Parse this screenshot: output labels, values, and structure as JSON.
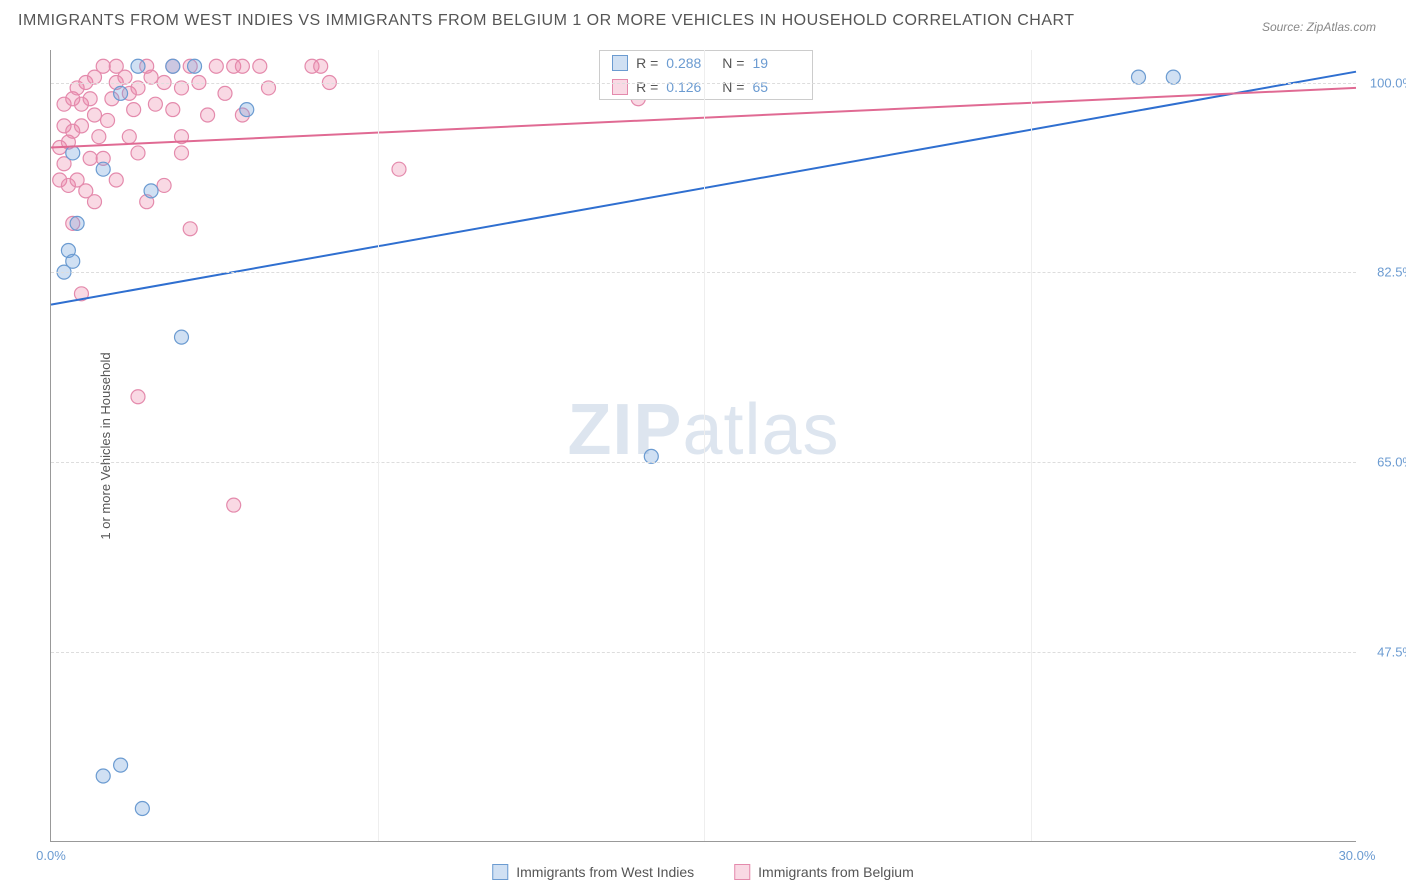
{
  "title": "IMMIGRANTS FROM WEST INDIES VS IMMIGRANTS FROM BELGIUM 1 OR MORE VEHICLES IN HOUSEHOLD CORRELATION CHART",
  "source": "Source: ZipAtlas.com",
  "y_axis_label": "1 or more Vehicles in Household",
  "watermark_bold": "ZIP",
  "watermark_rest": "atlas",
  "chart": {
    "type": "scatter",
    "xlim": [
      0,
      30
    ],
    "ylim": [
      30,
      103
    ],
    "xticks": [
      {
        "v": 0,
        "label": "0.0%"
      },
      {
        "v": 30,
        "label": "30.0%"
      }
    ],
    "vgrid": [
      7.5,
      15,
      22.5
    ],
    "yticks": [
      {
        "v": 47.5,
        "label": "47.5%"
      },
      {
        "v": 65.0,
        "label": "65.0%"
      },
      {
        "v": 82.5,
        "label": "82.5%"
      },
      {
        "v": 100.0,
        "label": "100.0%"
      }
    ],
    "grid_color": "#dddddd",
    "background_color": "#ffffff",
    "marker_radius": 7,
    "marker_stroke_width": 1.2,
    "line_width": 2,
    "series": [
      {
        "name": "Immigrants from West Indies",
        "color_fill": "rgba(120,165,220,0.35)",
        "color_stroke": "#6b9bd1",
        "line_color": "#2f6fd0",
        "R": "0.288",
        "N": "19",
        "trend": {
          "x1": 0,
          "y1": 79.5,
          "x2": 30,
          "y2": 101
        },
        "points": [
          [
            0.4,
            84.5
          ],
          [
            0.5,
            83.5
          ],
          [
            0.6,
            87
          ],
          [
            0.3,
            82.5
          ],
          [
            1.2,
            36
          ],
          [
            1.6,
            37
          ],
          [
            2.1,
            33
          ],
          [
            3.0,
            76.5
          ],
          [
            2.3,
            90
          ],
          [
            4.5,
            97.5
          ],
          [
            0.5,
            93.5
          ],
          [
            1.2,
            92
          ],
          [
            1.6,
            99
          ],
          [
            2.8,
            101.5
          ],
          [
            2.0,
            101.5
          ],
          [
            3.3,
            101.5
          ],
          [
            13.8,
            65.5
          ],
          [
            25.0,
            100.5
          ],
          [
            25.8,
            100.5
          ]
        ]
      },
      {
        "name": "Immigrants from Belgium",
        "color_fill": "rgba(235,130,165,0.30)",
        "color_stroke": "#e48aac",
        "line_color": "#e06a93",
        "R": "0.126",
        "N": "65",
        "trend": {
          "x1": 0,
          "y1": 94,
          "x2": 30,
          "y2": 99.5
        },
        "points": [
          [
            0.2,
            91
          ],
          [
            0.3,
            92.5
          ],
          [
            0.4,
            90.5
          ],
          [
            0.6,
            91
          ],
          [
            0.8,
            90
          ],
          [
            0.2,
            94
          ],
          [
            0.4,
            94.5
          ],
          [
            0.3,
            96
          ],
          [
            0.5,
            95.5
          ],
          [
            0.7,
            96
          ],
          [
            0.3,
            98
          ],
          [
            0.5,
            98.5
          ],
          [
            0.7,
            98
          ],
          [
            0.6,
            99.5
          ],
          [
            0.9,
            98.5
          ],
          [
            0.8,
            100
          ],
          [
            1.0,
            97
          ],
          [
            1.1,
            95
          ],
          [
            1.3,
            96.5
          ],
          [
            1.4,
            98.5
          ],
          [
            1.0,
            100.5
          ],
          [
            1.2,
            101.5
          ],
          [
            1.5,
            100
          ],
          [
            1.5,
            101.5
          ],
          [
            1.7,
            100.5
          ],
          [
            1.8,
            99
          ],
          [
            1.9,
            97.5
          ],
          [
            2.0,
            99.5
          ],
          [
            2.2,
            101.5
          ],
          [
            2.3,
            100.5
          ],
          [
            2.4,
            98
          ],
          [
            2.6,
            100
          ],
          [
            2.8,
            101.5
          ],
          [
            2.8,
            97.5
          ],
          [
            3.0,
            99.5
          ],
          [
            3.0,
            95
          ],
          [
            3.2,
            101.5
          ],
          [
            3.4,
            100
          ],
          [
            3.6,
            97
          ],
          [
            3.8,
            101.5
          ],
          [
            4.0,
            99
          ],
          [
            4.2,
            101.5
          ],
          [
            4.4,
            97
          ],
          [
            4.4,
            101.5
          ],
          [
            4.8,
            101.5
          ],
          [
            5.0,
            99.5
          ],
          [
            6.0,
            101.5
          ],
          [
            6.2,
            101.5
          ],
          [
            6.4,
            100
          ],
          [
            0.7,
            80.5
          ],
          [
            1.2,
            93
          ],
          [
            2.0,
            93.5
          ],
          [
            3.0,
            93.5
          ],
          [
            2.2,
            89
          ],
          [
            2.6,
            90.5
          ],
          [
            3.2,
            86.5
          ],
          [
            2.0,
            71
          ],
          [
            1.0,
            89
          ],
          [
            1.5,
            91
          ],
          [
            1.8,
            95
          ],
          [
            8.0,
            92
          ],
          [
            13.5,
            98.5
          ],
          [
            4.2,
            61
          ],
          [
            0.5,
            87
          ],
          [
            0.9,
            93
          ]
        ]
      }
    ]
  },
  "stats_labels": {
    "R": "R =",
    "N": "N ="
  },
  "legend_items": [
    {
      "label": "Immigrants from West Indies",
      "fill": "rgba(120,165,220,0.35)",
      "stroke": "#6b9bd1"
    },
    {
      "label": "Immigrants from Belgium",
      "fill": "rgba(235,130,165,0.30)",
      "stroke": "#e48aac"
    }
  ]
}
